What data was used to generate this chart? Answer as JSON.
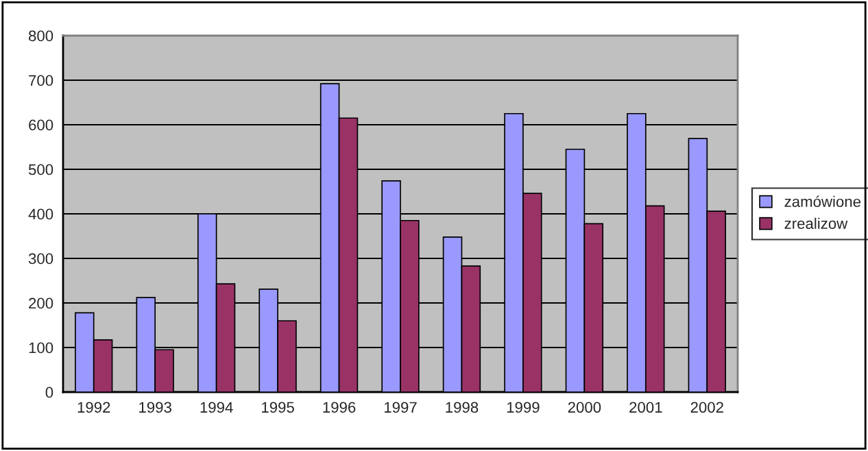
{
  "chart_data": {
    "type": "bar",
    "categories": [
      "1992",
      "1993",
      "1994",
      "1995",
      "1996",
      "1997",
      "1998",
      "1999",
      "2000",
      "2001",
      "2002"
    ],
    "series": [
      {
        "name": "zamówione",
        "color": "#9999ff",
        "values": [
          178,
          212,
          400,
          231,
          692,
          474,
          348,
          625,
          545,
          625,
          569
        ]
      },
      {
        "name": "zrealizow",
        "color": "#993366",
        "values": [
          117,
          95,
          243,
          160,
          615,
          385,
          283,
          446,
          378,
          418,
          406
        ]
      }
    ],
    "ylim": [
      0,
      800
    ],
    "yticks": [
      0,
      100,
      200,
      300,
      400,
      500,
      600,
      700,
      800
    ],
    "grid": "y",
    "legend": "right"
  }
}
